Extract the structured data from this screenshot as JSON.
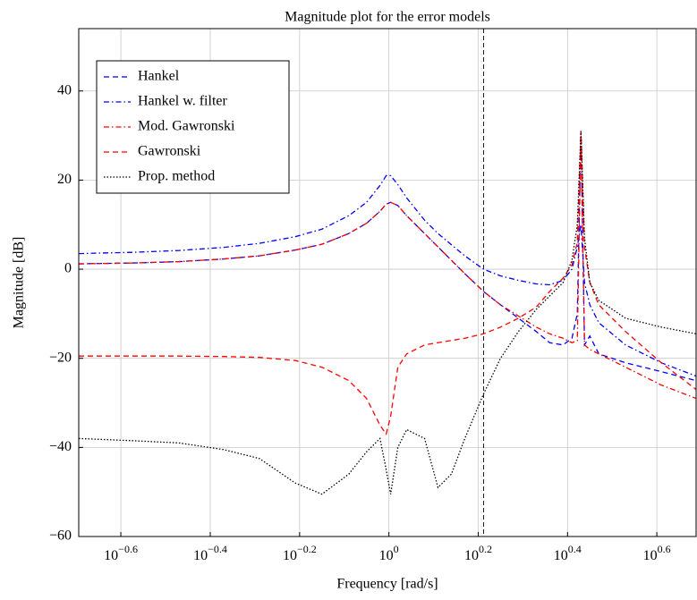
{
  "chart_data": {
    "type": "line",
    "title": "Magnitude plot for the error models",
    "x_label": "Frequency [rad/s]",
    "y_label": "Magnitude [dB]",
    "log_x": true,
    "grid": true,
    "legend": "north west",
    "xlim": [
      0.202,
      4.875
    ],
    "ylim": [
      -60,
      54
    ],
    "xticks": [
      {
        "value": 0.251,
        "label": "10−0.6"
      },
      {
        "value": 0.398,
        "label": "10−0.4"
      },
      {
        "value": 0.631,
        "label": "10−0.2"
      },
      {
        "value": 1,
        "label": "100"
      },
      {
        "value": 1.585,
        "label": "100.2"
      },
      {
        "value": 2.512,
        "label": "100.4"
      },
      {
        "value": 3.981,
        "label": "100.6"
      }
    ],
    "yticks": [
      -60,
      -40,
      -20,
      0,
      20,
      40
    ],
    "vline": 1.629,
    "x": [
      0.202,
      0.269,
      0.339,
      0.427,
      0.513,
      0.617,
      0.708,
      0.813,
      0.891,
      0.955,
      0.986,
      1.009,
      1.047,
      1.096,
      1.202,
      1.288,
      1.38,
      1.479,
      1.629,
      1.778,
      1.95,
      2.138,
      2.291,
      2.455,
      2.57,
      2.642,
      2.692,
      2.742,
      2.818,
      2.951,
      3.388,
      4.074,
      4.875
    ],
    "series": [
      {
        "name": "Hankel",
        "color": "#0000ff",
        "dash": "dashed",
        "values": [
          1.2,
          1.4,
          1.7,
          2.3,
          3.0,
          4.3,
          5.6,
          8.0,
          10.3,
          13.0,
          14.6,
          15.0,
          14.3,
          12.0,
          8.0,
          5.0,
          2.0,
          -1.0,
          -5.0,
          -8.0,
          -11.0,
          -14.0,
          -16.5,
          -17.0,
          -15.5,
          -10,
          31,
          -17,
          -15,
          -19,
          -21,
          -23,
          -25
        ]
      },
      {
        "name": "Hankel w. filter",
        "color": "#0000ff",
        "dash": "dashdot",
        "values": [
          3.5,
          3.8,
          4.2,
          4.9,
          5.8,
          7.3,
          9.0,
          12.0,
          15.0,
          18.8,
          21.0,
          21.0,
          19.0,
          16.0,
          11.0,
          8.0,
          5.5,
          3.0,
          0.0,
          -1.5,
          -2.5,
          -3.3,
          -3.5,
          -2.5,
          0,
          5,
          10,
          -3,
          -8,
          -12,
          -17,
          -21,
          -24
        ]
      },
      {
        "name": "Mod. Gawronski",
        "color": "#ff0000",
        "dash": "dashdot",
        "values": [
          1.2,
          1.4,
          1.7,
          2.3,
          3.0,
          4.3,
          5.6,
          8.0,
          10.3,
          13.0,
          14.6,
          15.0,
          14.3,
          12.0,
          8.0,
          5.0,
          2.0,
          -1.0,
          -5.0,
          -8.0,
          -10.5,
          -13.0,
          -14.5,
          -15.5,
          -16.5,
          -16,
          30,
          -17,
          -18,
          -19,
          -22,
          -26,
          -29
        ]
      },
      {
        "name": "Gawronski",
        "color": "#ff0000",
        "dash": "dashed",
        "values": [
          -19.5,
          -19.5,
          -19.5,
          -19.6,
          -19.8,
          -20.5,
          -22,
          -25,
          -29,
          -35,
          -37,
          -33,
          -22,
          -19,
          -17,
          -16.5,
          -16,
          -15.5,
          -14.5,
          -13,
          -11,
          -8.5,
          -5,
          -2,
          1,
          6,
          31,
          5,
          -3,
          -8,
          -14,
          -21,
          -27
        ]
      },
      {
        "name": "Prop. method",
        "color": "#000000",
        "dash": "dotted",
        "values": [
          -38,
          -38.5,
          -39,
          -40.5,
          -42.5,
          -48,
          -50.5,
          -46,
          -41,
          -38,
          -45,
          -50.5,
          -40,
          -36,
          -38,
          -49,
          -46,
          -38,
          -28,
          -20,
          -14,
          -9,
          -6,
          -3,
          2,
          10,
          31,
          7,
          -3,
          -7,
          -11,
          -13,
          -14.5
        ]
      }
    ]
  }
}
